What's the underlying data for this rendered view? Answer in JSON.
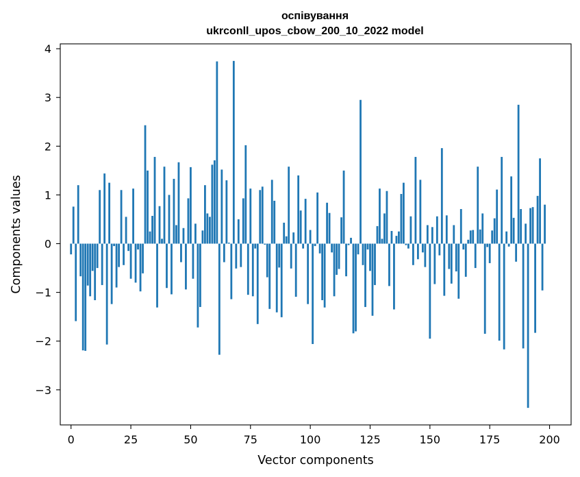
{
  "chart_data": {
    "type": "bar",
    "title": "оспівування",
    "subtitle": "ukrconll_upos_cbow_200_10_2022 model",
    "xlabel": "Vector components",
    "ylabel": "Components values",
    "xlim": [
      -4.5,
      209
    ],
    "ylim": [
      -3.72,
      4.1
    ],
    "xticks": [
      0,
      25,
      50,
      75,
      100,
      125,
      150,
      175,
      200
    ],
    "xtick_labels": [
      "0",
      "25",
      "50",
      "75",
      "100",
      "125",
      "150",
      "175",
      "200"
    ],
    "yticks": [
      -3,
      -2,
      -1,
      0,
      1,
      2,
      3,
      4
    ],
    "ytick_labels": [
      "−3",
      "−2",
      "−1",
      "0",
      "1",
      "2",
      "3",
      "4"
    ],
    "grid": false,
    "bar_color": "#1f77b4",
    "values": [
      -0.22,
      0.76,
      -1.59,
      1.2,
      -0.67,
      -2.19,
      -2.2,
      -0.86,
      -1.08,
      -0.56,
      -1.16,
      -0.5,
      1.1,
      -0.85,
      1.44,
      -2.07,
      1.25,
      -1.24,
      -0.05,
      -0.9,
      -0.48,
      1.1,
      -0.44,
      0.55,
      -0.15,
      -0.72,
      1.13,
      -0.8,
      -0.12,
      -0.98,
      -0.61,
      2.43,
      1.5,
      0.25,
      0.57,
      1.78,
      -1.31,
      0.77,
      0.1,
      1.58,
      -0.91,
      1.0,
      -1.04,
      1.33,
      0.38,
      1.67,
      -0.38,
      0.32,
      -0.94,
      0.93,
      1.57,
      -0.72,
      0.41,
      -1.72,
      -1.3,
      0.27,
      1.2,
      0.62,
      0.55,
      1.62,
      1.71,
      3.74,
      -2.28,
      1.52,
      -0.38,
      1.3,
      0.02,
      -1.14,
      3.75,
      -0.51,
      0.5,
      -0.48,
      0.93,
      2.02,
      -1.05,
      1.13,
      -1.08,
      -0.1,
      -1.65,
      1.1,
      1.17,
      -0.02,
      -0.69,
      -1.34,
      1.31,
      0.88,
      -1.41,
      -0.49,
      -1.51,
      0.43,
      0.15,
      1.58,
      -0.51,
      0.23,
      -1.09,
      1.4,
      0.68,
      -0.1,
      0.92,
      -1.24,
      0.28,
      -2.06,
      -0.05,
      1.05,
      -0.2,
      -1.16,
      -1.31,
      0.84,
      0.63,
      -0.18,
      -1.08,
      -0.64,
      -0.52,
      0.54,
      1.5,
      -0.67,
      -0.03,
      0.12,
      -1.84,
      -1.8,
      -0.22,
      2.95,
      -0.44,
      -1.3,
      -0.12,
      -0.56,
      -1.48,
      -0.85,
      0.36,
      1.13,
      0.1,
      0.62,
      1.08,
      -0.87,
      0.26,
      -1.35,
      0.16,
      0.25,
      1.02,
      1.25,
      -0.03,
      -0.1,
      0.56,
      -0.44,
      1.78,
      -0.32,
      1.31,
      -0.18,
      -0.48,
      0.38,
      -1.95,
      0.34,
      -0.83,
      0.56,
      -0.24,
      1.96,
      -1.07,
      0.58,
      -0.52,
      -0.82,
      0.38,
      -0.57,
      -1.13,
      0.71,
      -0.12,
      -0.68,
      0.08,
      0.27,
      0.28,
      -0.5,
      1.58,
      0.29,
      0.62,
      -1.85,
      -0.07,
      -0.4,
      0.27,
      0.52,
      1.11,
      -1.99,
      1.78,
      -2.17,
      0.25,
      -0.06,
      1.38,
      0.53,
      -0.37,
      2.85,
      0.71,
      -2.15,
      0.41,
      -3.37,
      0.73,
      0.75,
      -1.83,
      0.98,
      1.75,
      -0.96,
      0.8
    ]
  }
}
